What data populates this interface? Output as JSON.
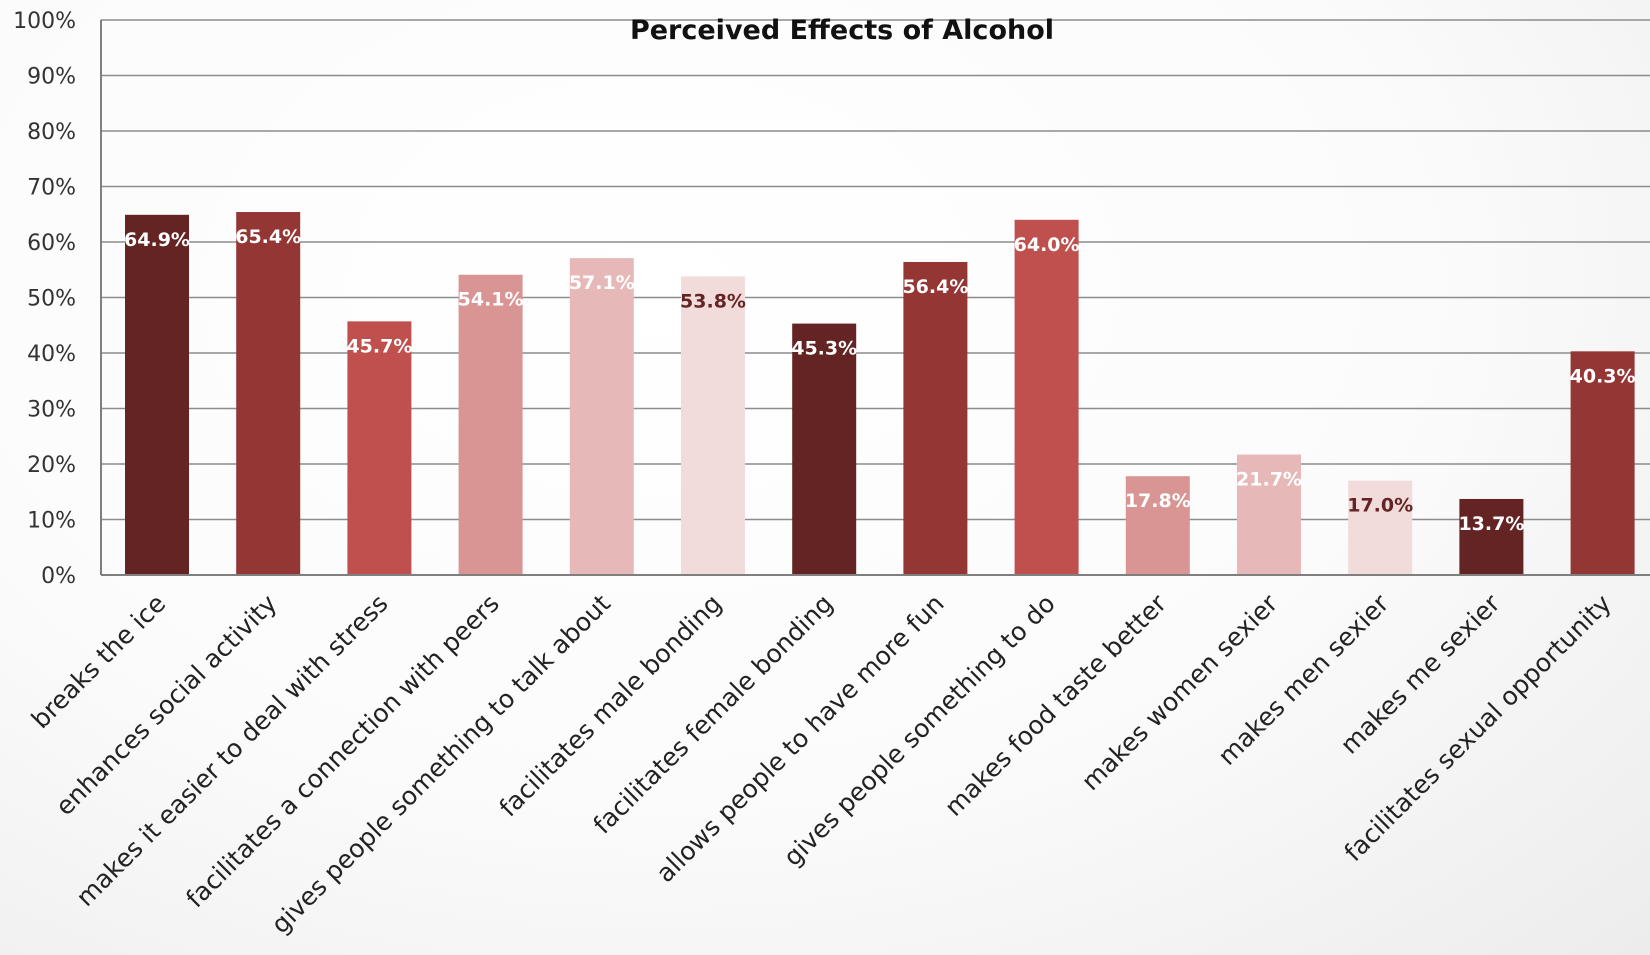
{
  "chart_data": {
    "type": "bar",
    "title": "Perceived Effects of Alcohol",
    "xlabel": "",
    "ylabel": "",
    "ylim": [
      0,
      100
    ],
    "y_ticks": [
      "0%",
      "10%",
      "20%",
      "30%",
      "40%",
      "50%",
      "60%",
      "70%",
      "80%",
      "90%",
      "100%"
    ],
    "grid": true,
    "legend": "none",
    "categories": [
      "breaks the ice",
      "enhances social activity",
      "makes it easier to deal with stress",
      "facilitates a connection with peers",
      "gives people something to talk about",
      "facilitates male bonding",
      "facilitates female bonding",
      "allows people to have more fun",
      "gives people something to do",
      "makes food taste better",
      "makes women sexier",
      "makes men sexier",
      "makes me sexier",
      "facilitates sexual opportunity"
    ],
    "values": [
      64.9,
      65.4,
      45.7,
      54.1,
      57.1,
      53.8,
      45.3,
      56.4,
      64.0,
      17.8,
      21.7,
      17.0,
      13.7,
      40.3
    ],
    "data_labels": [
      "64.9%",
      "65.4%",
      "45.7%",
      "54.1%",
      "57.1%",
      "53.8%",
      "45.3%",
      "56.4%",
      "64.0%",
      "17.8%",
      "21.7%",
      "17.0%",
      "13.7%",
      "40.3%"
    ],
    "bar_colors": [
      "#632423",
      "#943634",
      "#C0504D",
      "#D99594",
      "#E6B9B8",
      "#F2DCDB",
      "#632423",
      "#943634",
      "#C0504D",
      "#D99594",
      "#E6B9B8",
      "#F2DCDB",
      "#632423",
      "#943634"
    ],
    "label_colors": [
      "#FFFFFF",
      "#FFFFFF",
      "#FFFFFF",
      "#FFFFFF",
      "#FFFFFF",
      "#632423",
      "#FFFFFF",
      "#FFFFFF",
      "#FFFFFF",
      "#FFFFFF",
      "#FFFFFF",
      "#632423",
      "#FFFFFF",
      "#FFFFFF"
    ]
  }
}
